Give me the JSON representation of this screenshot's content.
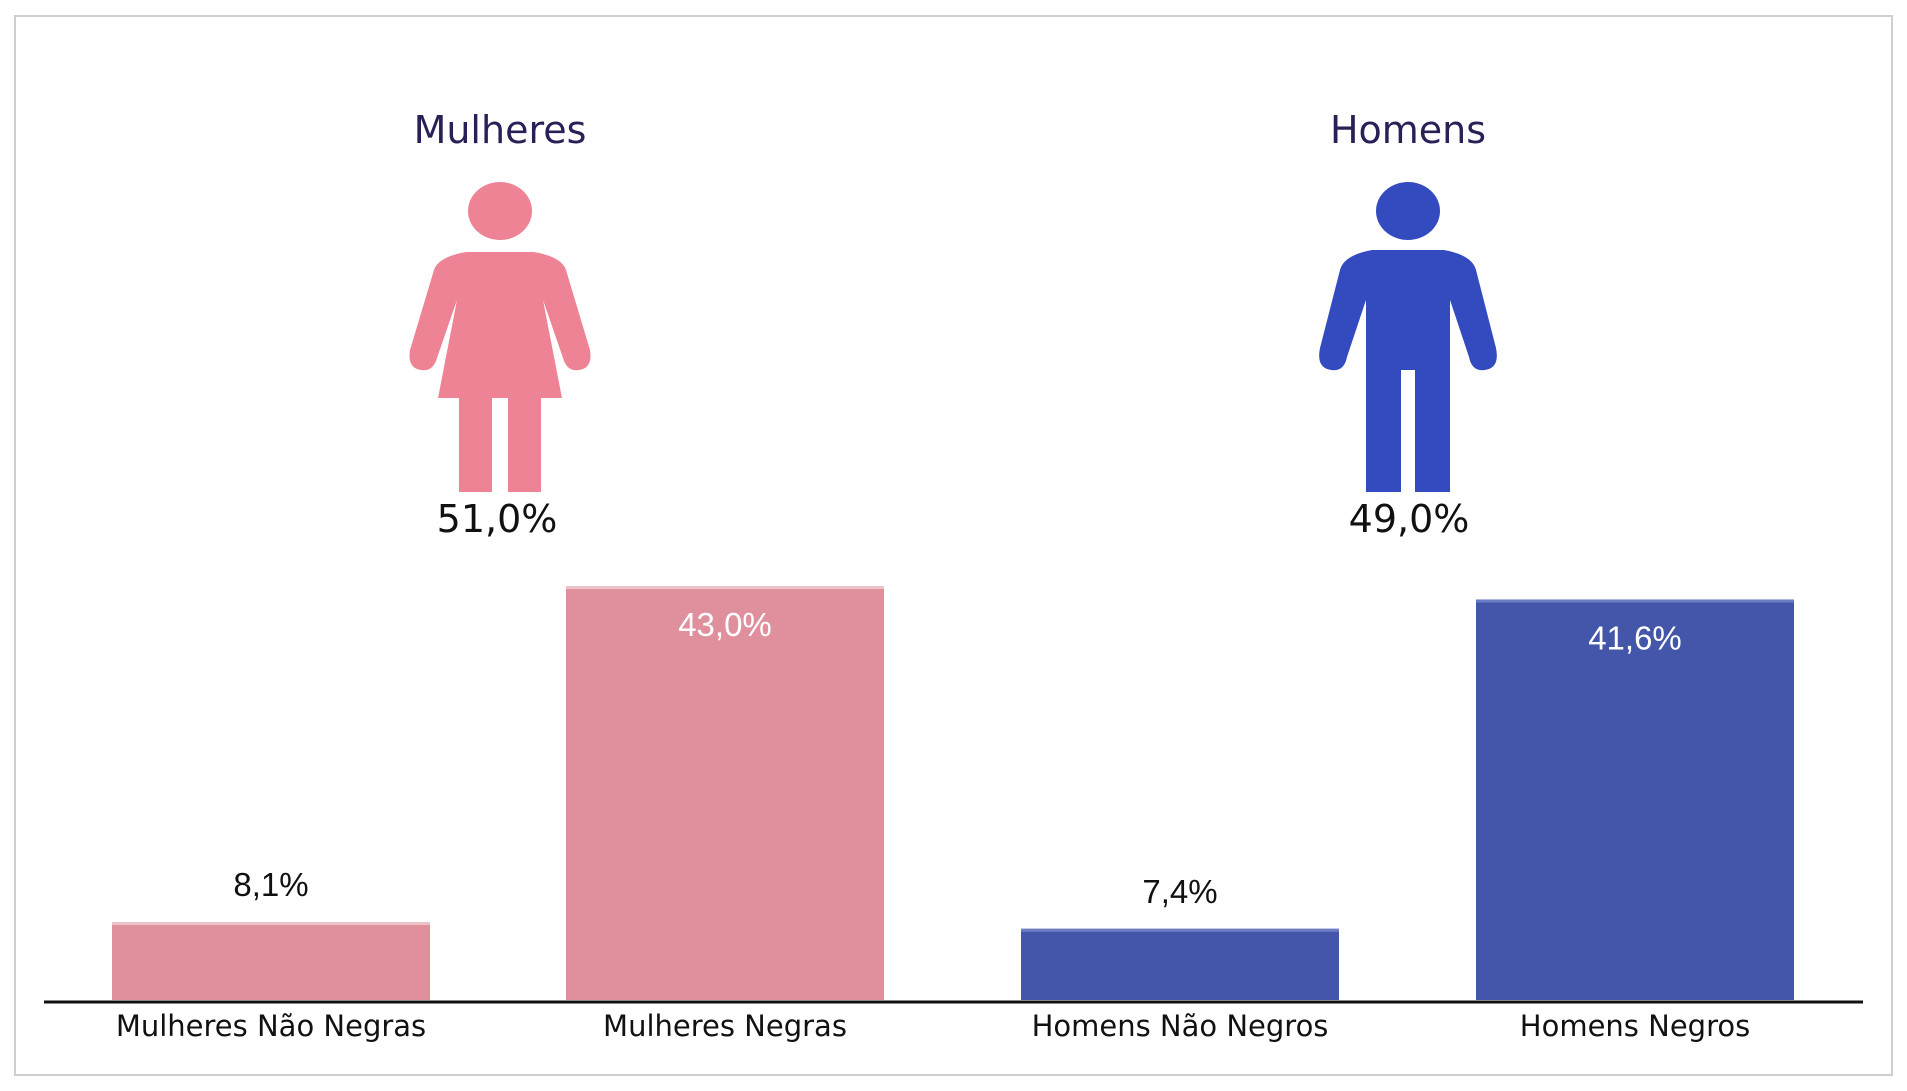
{
  "colors": {
    "women": "#e08f9d",
    "women_top": "#efc2c9",
    "women_icon": "#ef8396",
    "men": "#4456aa",
    "men_top": "#6c7cc2",
    "men_icon": "#344bbf",
    "title": "#2a1f57",
    "inside_label": "#ffffff",
    "outside_label": "#111111",
    "axis": "#111111"
  },
  "groups": [
    {
      "title": "Mulheres",
      "share": "51,0%",
      "icon": "female-figure-icon",
      "color_key": "women"
    },
    {
      "title": "Homens",
      "share": "49,0%",
      "icon": "male-figure-icon",
      "color_key": "men"
    }
  ],
  "chart_data": {
    "type": "bar",
    "categories": [
      "Mulheres Não Negras",
      "Mulheres Negras",
      "Homens Não Negros",
      "Homens Negros"
    ],
    "values": [
      8.1,
      43.0,
      7.4,
      41.6
    ],
    "value_labels": [
      "8,1%",
      "43,0%",
      "7,4%",
      "41,6%"
    ],
    "label_inside": [
      false,
      true,
      false,
      true
    ],
    "colors": [
      "#e08f9d",
      "#e08f9d",
      "#4456aa",
      "#4456aa"
    ],
    "top_colors": [
      "#efc2c9",
      "#efc2c9",
      "#6c7cc2",
      "#6c7cc2"
    ],
    "ylim": [
      0,
      43.0
    ],
    "grid": false,
    "title": "",
    "xlabel": "",
    "ylabel": ""
  }
}
